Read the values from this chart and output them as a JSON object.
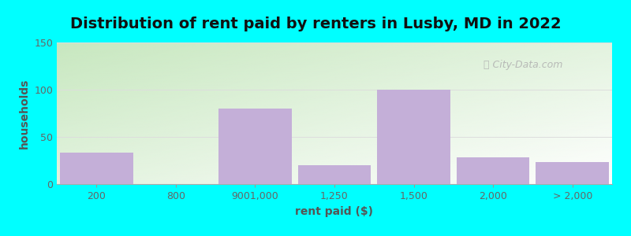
{
  "title": "Distribution of rent paid by renters in Lusby, MD in 2022",
  "xlabel": "rent paid ($)",
  "ylabel": "households",
  "categories": [
    "200",
    "800",
    "9001,000",
    "1,250",
    "1,500",
    "2,000",
    "> 2,000"
  ],
  "values": [
    33,
    0,
    80,
    20,
    100,
    28,
    23
  ],
  "bar_color": "#c4afd8",
  "bar_edgecolor": "#c4afd8",
  "ylim": [
    0,
    150
  ],
  "yticks": [
    0,
    50,
    100,
    150
  ],
  "background_outer": "#00ffff",
  "grid_color": "#dddddd",
  "title_fontsize": 14,
  "label_fontsize": 10,
  "tick_fontsize": 9,
  "tick_color": "#666666",
  "label_color": "#555555",
  "title_color": "#111111",
  "watermark": "City-Data.com"
}
